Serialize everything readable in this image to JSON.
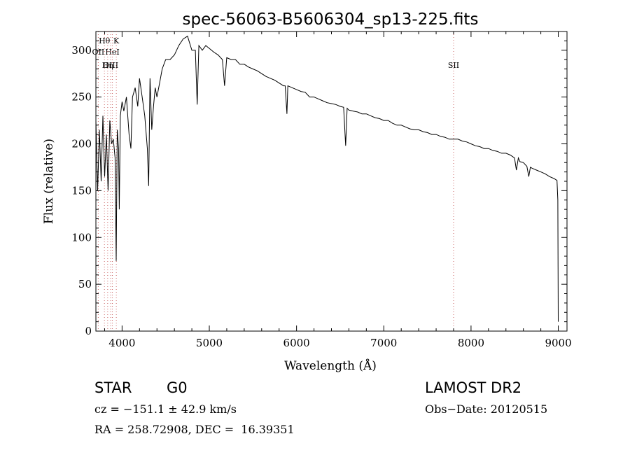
{
  "chart_data": {
    "type": "line",
    "title": "spec-56063-B5606304_sp13-225.fits",
    "xlabel": "Wavelength (Å)",
    "ylabel": "Flux (relative)",
    "xlim": [
      3700,
      9100
    ],
    "ylim": [
      0,
      320
    ],
    "xticks": [
      "4000",
      "5000",
      "6000",
      "7000",
      "8000",
      "9000"
    ],
    "yticks": [
      "0",
      "50",
      "100",
      "150",
      "200",
      "250",
      "300"
    ],
    "line_labels": [
      {
        "label": "Hθ",
        "x": 3798,
        "row": 1
      },
      {
        "label": "K",
        "x": 3934,
        "row": 1
      },
      {
        "label": "OII",
        "x": 3727,
        "row": 2
      },
      {
        "label": "HeI",
        "x": 3889,
        "row": 2
      },
      {
        "label": "OIII",
        "x": 3869,
        "row": 3
      },
      {
        "label": "Hη",
        "x": 3835,
        "row": 3
      },
      {
        "label": "SII",
        "x": 7800,
        "row": 3
      }
    ],
    "series": [
      {
        "x": [
          3700,
          3720,
          3740,
          3760,
          3780,
          3800,
          3820,
          3840,
          3860,
          3880,
          3900,
          3920,
          3933,
          3945,
          3960,
          3968,
          3980,
          4000,
          4020,
          4050,
          4080,
          4101,
          4120,
          4150,
          4180,
          4200,
          4230,
          4260,
          4290,
          4305,
          4320,
          4340,
          4360,
          4380,
          4400,
          4430,
          4460,
          4500,
          4550,
          4600,
          4650,
          4700,
          4750,
          4800,
          4840,
          4861,
          4880,
          4920,
          4960,
          5000,
          5050,
          5100,
          5150,
          5175,
          5200,
          5250,
          5300,
          5350,
          5400,
          5450,
          5500,
          5550,
          5600,
          5650,
          5700,
          5750,
          5800,
          5850,
          5870,
          5890,
          5900,
          5950,
          6000,
          6050,
          6100,
          6150,
          6200,
          6250,
          6300,
          6350,
          6400,
          6450,
          6500,
          6540,
          6563,
          6580,
          6600,
          6650,
          6700,
          6750,
          6800,
          6850,
          6900,
          6950,
          7000,
          7050,
          7100,
          7150,
          7200,
          7250,
          7300,
          7350,
          7400,
          7450,
          7500,
          7550,
          7600,
          7650,
          7700,
          7750,
          7800,
          7850,
          7900,
          7950,
          8000,
          8050,
          8100,
          8150,
          8200,
          8250,
          8300,
          8350,
          8400,
          8450,
          8498,
          8520,
          8542,
          8560,
          8600,
          8640,
          8662,
          8680,
          8700,
          8750,
          8800,
          8850,
          8900,
          8950,
          8985,
          8995,
          9000
        ],
        "y": [
          225,
          150,
          215,
          160,
          230,
          165,
          210,
          150,
          225,
          200,
          205,
          185,
          75,
          215,
          195,
          130,
          230,
          245,
          235,
          250,
          210,
          195,
          250,
          260,
          240,
          270,
          250,
          230,
          195,
          155,
          270,
          215,
          240,
          260,
          250,
          265,
          280,
          290,
          290,
          295,
          305,
          312,
          315,
          300,
          300,
          242,
          305,
          300,
          305,
          302,
          298,
          295,
          290,
          262,
          292,
          290,
          290,
          285,
          285,
          282,
          280,
          278,
          275,
          272,
          270,
          268,
          265,
          262,
          262,
          232,
          262,
          260,
          258,
          256,
          255,
          250,
          250,
          248,
          246,
          244,
          243,
          242,
          240,
          239,
          198,
          238,
          236,
          235,
          234,
          232,
          232,
          230,
          228,
          227,
          225,
          225,
          222,
          220,
          220,
          218,
          216,
          215,
          215,
          213,
          212,
          210,
          210,
          208,
          207,
          205,
          205,
          205,
          203,
          202,
          200,
          198,
          197,
          195,
          195,
          193,
          192,
          190,
          190,
          188,
          185,
          172,
          185,
          181,
          180,
          176,
          165,
          175,
          174,
          172,
          170,
          168,
          165,
          163,
          161,
          140,
          10
        ]
      }
    ]
  },
  "info": {
    "class_label": "STAR",
    "subclass_label": "G0",
    "survey_label": "LAMOST DR2",
    "cz_text": "cz = −151.1 ± 42.9 km/s",
    "obs_date_text": "Obs−Date: 20120515",
    "radec_text": "RA = 258.72908, DEC =  16.39351"
  },
  "colors": {
    "line": "#000000",
    "marker_line": "#cc6666",
    "background": "#ffffff"
  }
}
